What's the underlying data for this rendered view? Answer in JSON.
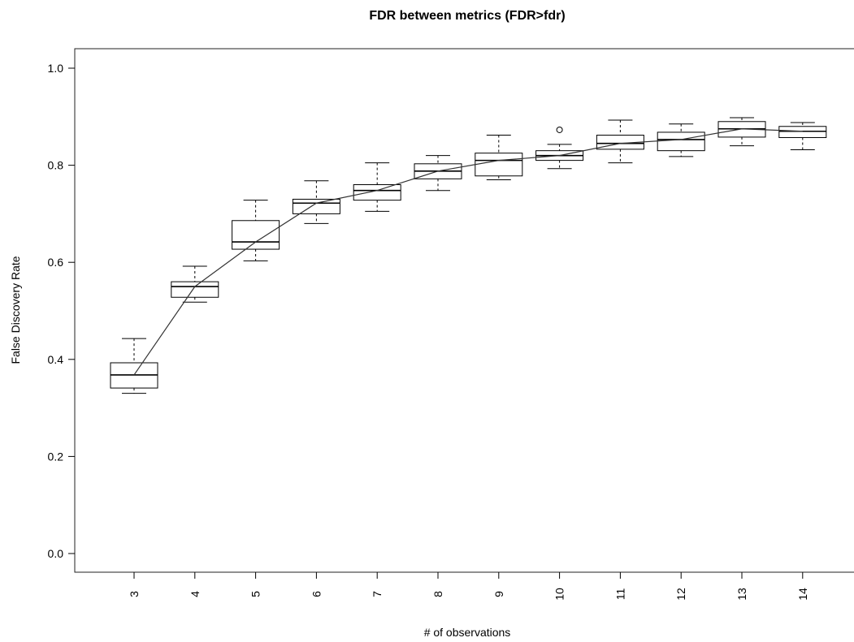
{
  "chart_data": {
    "type": "box",
    "title": "FDR between metrics (FDR>fdr)",
    "xlabel": "# of observations",
    "ylabel": "False Discovery Rate",
    "ylim": [
      0.0,
      1.0
    ],
    "y_ticks": [
      "0.0",
      "0.2",
      "0.4",
      "0.6",
      "0.8",
      "1.0"
    ],
    "categories": [
      "3",
      "4",
      "5",
      "6",
      "7",
      "8",
      "9",
      "10",
      "11",
      "12",
      "13",
      "14"
    ],
    "boxes": [
      {
        "x": "3",
        "min": 0.33,
        "q1": 0.341,
        "median": 0.368,
        "q3": 0.393,
        "max": 0.443,
        "outliers": []
      },
      {
        "x": "4",
        "min": 0.518,
        "q1": 0.528,
        "median": 0.55,
        "q3": 0.56,
        "max": 0.592,
        "outliers": []
      },
      {
        "x": "5",
        "min": 0.603,
        "q1": 0.627,
        "median": 0.642,
        "q3": 0.686,
        "max": 0.728,
        "outliers": []
      },
      {
        "x": "6",
        "min": 0.68,
        "q1": 0.7,
        "median": 0.722,
        "q3": 0.73,
        "max": 0.768,
        "outliers": []
      },
      {
        "x": "7",
        "min": 0.705,
        "q1": 0.728,
        "median": 0.748,
        "q3": 0.76,
        "max": 0.805,
        "outliers": []
      },
      {
        "x": "8",
        "min": 0.748,
        "q1": 0.772,
        "median": 0.788,
        "q3": 0.803,
        "max": 0.82,
        "outliers": []
      },
      {
        "x": "9",
        "min": 0.77,
        "q1": 0.778,
        "median": 0.81,
        "q3": 0.825,
        "max": 0.862,
        "outliers": []
      },
      {
        "x": "10",
        "min": 0.793,
        "q1": 0.81,
        "median": 0.82,
        "q3": 0.83,
        "max": 0.843,
        "outliers": [
          0.873
        ]
      },
      {
        "x": "11",
        "min": 0.805,
        "q1": 0.833,
        "median": 0.845,
        "q3": 0.862,
        "max": 0.893,
        "outliers": []
      },
      {
        "x": "12",
        "min": 0.818,
        "q1": 0.83,
        "median": 0.853,
        "q3": 0.868,
        "max": 0.885,
        "outliers": []
      },
      {
        "x": "13",
        "min": 0.84,
        "q1": 0.858,
        "median": 0.875,
        "q3": 0.89,
        "max": 0.898,
        "outliers": []
      },
      {
        "x": "14",
        "min": 0.832,
        "q1": 0.857,
        "median": 0.87,
        "q3": 0.88,
        "max": 0.888,
        "outliers": []
      }
    ],
    "trend_line": {
      "x": [
        "3",
        "4",
        "5",
        "6",
        "7",
        "8",
        "9",
        "10",
        "11",
        "12",
        "13",
        "14"
      ],
      "y": [
        0.368,
        0.55,
        0.642,
        0.722,
        0.748,
        0.788,
        0.81,
        0.82,
        0.845,
        0.853,
        0.875,
        0.87
      ]
    },
    "grid": false,
    "colors": {
      "stroke": "#000000",
      "background": "#ffffff"
    }
  }
}
